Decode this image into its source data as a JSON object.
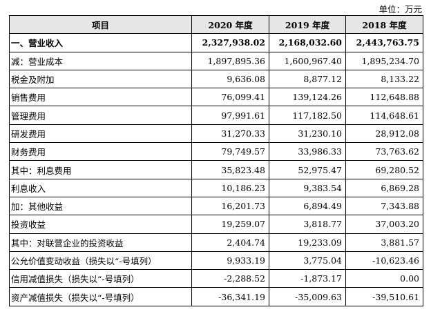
{
  "unit": "单位：万元",
  "headers": [
    "项目",
    "2020 年度",
    "2019 年度",
    "2018 年度"
  ],
  "rows": [
    {
      "label": "一、营业收入",
      "v2020": "2,327,938.02",
      "v2019": "2,168,032.60",
      "v2018": "2,443,763.75",
      "bold": true
    },
    {
      "label": "减：营业成本",
      "v2020": "1,897,895.36",
      "v2019": "1,600,967.40",
      "v2018": "1,895,234.70"
    },
    {
      "label": "税金及附加",
      "v2020": "9,636.08",
      "v2019": "8,877.12",
      "v2018": "8,133.22"
    },
    {
      "label": "销售费用",
      "v2020": "76,099.41",
      "v2019": "139,124.26",
      "v2018": "112,648.88"
    },
    {
      "label": "管理费用",
      "v2020": "97,991.61",
      "v2019": "117,182.50",
      "v2018": "114,648.61"
    },
    {
      "label": "研发费用",
      "v2020": "31,270.33",
      "v2019": "31,230.10",
      "v2018": "28,912.08"
    },
    {
      "label": "财务费用",
      "v2020": "79,749.57",
      "v2019": "33,986.33",
      "v2018": "73,763.62"
    },
    {
      "label": "其中：利息费用",
      "v2020": "35,823.48",
      "v2019": "52,975.47",
      "v2018": "69,280.52"
    },
    {
      "label": "利息收入",
      "v2020": "10,186.23",
      "v2019": "9,383.54",
      "v2018": "6,869.28"
    },
    {
      "label": "加：其他收益",
      "v2020": "16,201.73",
      "v2019": "6,894.49",
      "v2018": "7,343.88"
    },
    {
      "label": "投资收益",
      "v2020": "19,259.07",
      "v2019": "3,818.77",
      "v2018": "37,003.20"
    },
    {
      "label": "其中：对联营企业的投资收益",
      "v2020": "2,404.74",
      "v2019": "19,233.09",
      "v2018": "3,881.57"
    },
    {
      "label": "公允价值变动收益（损失以“-号填列）",
      "v2020": "9,933.19",
      "v2019": "3,775.04",
      "v2018": "-10,623.46"
    },
    {
      "label": "信用减值损失（损失以“-号填列）",
      "v2020": "-2,288.52",
      "v2019": "-1,873.17",
      "v2018": "0.00"
    },
    {
      "label": "资产减值损失（损失以“-号填列）",
      "v2020": "-36,341.19",
      "v2019": "-35,009.63",
      "v2018": "-39,510.61"
    }
  ]
}
